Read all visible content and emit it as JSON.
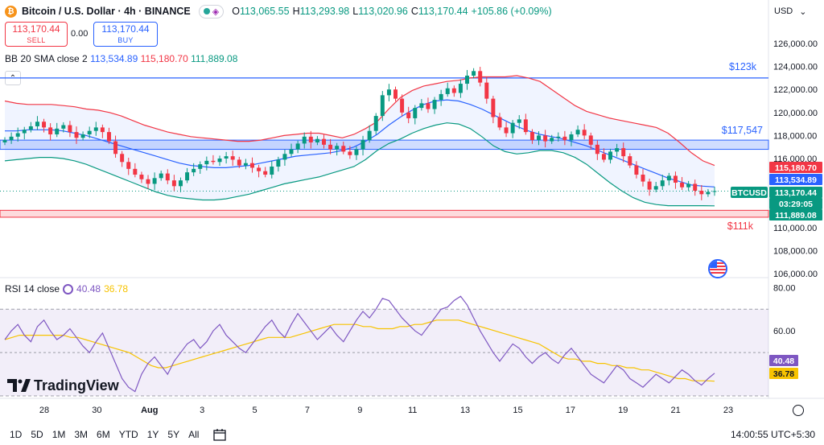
{
  "header": {
    "logo_letter": "₿",
    "title": "Bitcoin / U.S. Dollar · 4h · BINANCE",
    "ohlc": [
      {
        "label": "O",
        "value": "113,065.55"
      },
      {
        "label": "H",
        "value": "113,293.98"
      },
      {
        "label": "L",
        "value": "113,020.96"
      },
      {
        "label": "C",
        "value": "113,170.44"
      },
      {
        "label": "",
        "value": "+105.86 (+0.09%)"
      }
    ],
    "currency": "USD",
    "currency_chevron": "⌄"
  },
  "trade": {
    "sell_price": "113,170.44",
    "sell_label": "SELL",
    "spread": "0.00",
    "buy_price": "113,170.44",
    "buy_label": "BUY"
  },
  "bb_legend": {
    "label": "BB 20 SMA close 2",
    "middle": "113,534.89",
    "upper": "115,180.70",
    "lower": "111,889.08"
  },
  "collapse_glyph": "⌃",
  "rsi_legend": {
    "label": "RSI 14 close",
    "rsi": "40.48",
    "ma": "36.78"
  },
  "price_axis": [
    "126,000.00",
    "124,000.00",
    "122,000.00",
    "120,000.00",
    "118,000.00",
    "116,000.00",
    "110,000.00",
    "108,000.00",
    "106,000.00"
  ],
  "rsi_axis": [
    "80.00",
    "60.00"
  ],
  "axis_badges": [
    {
      "text": "115,180.70",
      "color": "#f23645"
    },
    {
      "text": "113,534.89",
      "color": "#2962ff"
    },
    {
      "text": "113,170.44",
      "color": "#089981"
    },
    {
      "text": "03:29:05",
      "color": "#089981"
    },
    {
      "text": "111,889.08",
      "color": "#089981"
    }
  ],
  "symbol_badge": "BTCUSD",
  "rsi_badges": [
    {
      "text": "40.48",
      "color": "#7e57c2"
    },
    {
      "text": "36.78",
      "color": "#f7c300"
    }
  ],
  "annotations": {
    "line_123k": "$123k",
    "zone_117k": "$117,547",
    "zone_111k": "$111k"
  },
  "time_axis": [
    "28",
    "30",
    "Aug",
    "3",
    "5",
    "7",
    "9",
    "11",
    "13",
    "15",
    "17",
    "19",
    "21",
    "23"
  ],
  "bottom": {
    "timeframes": [
      "1D",
      "5D",
      "1M",
      "3M",
      "6M",
      "YTD",
      "1Y",
      "5Y",
      "All"
    ],
    "clock": "14:00:55 UTC+5:30"
  },
  "brand": {
    "text": "TradingView"
  },
  "colors": {
    "up": "#089981",
    "down": "#f23645",
    "basis": "#2962ff",
    "rsi": "#7e57c2",
    "rsi_ma": "#f7c300"
  },
  "chart_data": {
    "type": "candlestick",
    "title": "Bitcoin / U.S. Dollar · 4h · BINANCE",
    "y_range": [
      106000,
      126000
    ],
    "x_labels": [
      "28",
      "30",
      "Aug",
      "3",
      "5",
      "7",
      "9",
      "11",
      "13",
      "15",
      "17",
      "19",
      "21",
      "23"
    ],
    "close_series": [
      117600,
      117900,
      118200,
      118500,
      118800,
      119200,
      118700,
      118100,
      118600,
      118900,
      118300,
      117800,
      118100,
      118400,
      118700,
      118300,
      117500,
      116400,
      115700,
      115100,
      114600,
      114200,
      113800,
      114300,
      114700,
      114100,
      113600,
      114100,
      114800,
      115100,
      115500,
      115800,
      115700,
      116000,
      116200,
      115900,
      115400,
      115600,
      115200,
      114900,
      114600,
      115300,
      115900,
      116400,
      116800,
      117300,
      117900,
      117400,
      117700,
      117200,
      116800,
      117100,
      116600,
      116300,
      116800,
      117600,
      118400,
      119700,
      121500,
      122000,
      121200,
      120000,
      119500,
      120400,
      120800,
      120300,
      121100,
      121600,
      122100,
      121700,
      122500,
      123200,
      123600,
      122600,
      121200,
      119600,
      118700,
      118200,
      119100,
      119400,
      118300,
      117600,
      118000,
      117500,
      117800,
      117900,
      117600,
      118100,
      118500,
      118000,
      117200,
      116400,
      115900,
      116600,
      116900,
      116200,
      115400,
      114600,
      114000,
      113300,
      113600,
      114100,
      114500,
      113900,
      113500,
      113800,
      113200,
      112900,
      113100,
      113170
    ],
    "bb_upper": [
      121000,
      120800,
      120700,
      120700,
      120700,
      120600,
      120500,
      120300,
      120200,
      120000,
      119700,
      119300,
      118900,
      118600,
      118300,
      118100,
      117900,
      117800,
      117700,
      117600,
      117500,
      117500,
      117600,
      117800,
      118000,
      118100,
      118200,
      118200,
      118000,
      117800,
      118100,
      118600,
      119200,
      120300,
      121300,
      121900,
      122300,
      122500,
      122700,
      122800,
      123000,
      123100,
      123100,
      123100,
      123200,
      123000,
      122700,
      122000,
      121300,
      120600,
      120100,
      119800,
      119500,
      119300,
      119100,
      118900,
      118700,
      118200,
      117400,
      116500,
      115800,
      115400
    ],
    "bb_basis": [
      118400,
      118400,
      118500,
      118500,
      118500,
      118400,
      118200,
      118000,
      117700,
      117400,
      117100,
      116800,
      116500,
      116200,
      115900,
      115600,
      115400,
      115300,
      115200,
      115200,
      115300,
      115400,
      115600,
      115800,
      116000,
      116200,
      116300,
      116400,
      116500,
      116700,
      117000,
      117500,
      118100,
      118900,
      119600,
      120200,
      120700,
      121000,
      121100,
      121000,
      120700,
      120300,
      119800,
      119300,
      118800,
      118400,
      118100,
      117900,
      117700,
      117400,
      117100,
      116700,
      116300,
      115900,
      115500,
      115100,
      114700,
      114300,
      114000,
      113700,
      113600,
      113530
    ],
    "bb_lower": [
      115800,
      115900,
      116000,
      116100,
      116100,
      116000,
      115800,
      115500,
      115100,
      114700,
      114300,
      113900,
      113500,
      113100,
      112800,
      112600,
      112500,
      112400,
      112400,
      112500,
      112700,
      112900,
      113200,
      113500,
      113800,
      114000,
      114200,
      114400,
      114700,
      115000,
      115300,
      115900,
      116700,
      117300,
      117700,
      118200,
      118600,
      118900,
      119100,
      119000,
      118600,
      117900,
      117100,
      116600,
      116400,
      116500,
      116700,
      116700,
      116500,
      116100,
      115500,
      114700,
      113900,
      113200,
      112600,
      112200,
      112000,
      111900,
      111900,
      111900,
      111900,
      111890
    ],
    "rsi": [
      56,
      60,
      63,
      58,
      55,
      62,
      65,
      60,
      56,
      58,
      61,
      57,
      53,
      50,
      55,
      59,
      52,
      45,
      38,
      34,
      32,
      40,
      45,
      48,
      44,
      40,
      46,
      50,
      54,
      56,
      52,
      55,
      60,
      63,
      58,
      55,
      52,
      50,
      54,
      58,
      62,
      65,
      60,
      57,
      63,
      68,
      64,
      60,
      56,
      59,
      62,
      58,
      55,
      60,
      65,
      69,
      66,
      70,
      75,
      74,
      70,
      66,
      63,
      60,
      58,
      62,
      66,
      70,
      71,
      74,
      76,
      72,
      66,
      60,
      55,
      50,
      46,
      50,
      54,
      52,
      48,
      45,
      48,
      50,
      47,
      45,
      49,
      52,
      48,
      44,
      40,
      38,
      36,
      40,
      44,
      42,
      38,
      36,
      34,
      37,
      40,
      38,
      36,
      39,
      42,
      40,
      37,
      35,
      38,
      40.48
    ],
    "rsi_ma": [
      56,
      57,
      58,
      58,
      58,
      58,
      58,
      58,
      58,
      57,
      57,
      56,
      55,
      54,
      53,
      52,
      51,
      50,
      48,
      46,
      44,
      43,
      43,
      44,
      45,
      46,
      47,
      48,
      49,
      50,
      51,
      52,
      53,
      54,
      55,
      56,
      57,
      57,
      57,
      57,
      58,
      59,
      60,
      61,
      62,
      63,
      63,
      63,
      63,
      62,
      62,
      61,
      61,
      61,
      62,
      62,
      63,
      63,
      64,
      65,
      65,
      65,
      65,
      64,
      63,
      62,
      61,
      60,
      59,
      58,
      57,
      56,
      55,
      54,
      52,
      50,
      48,
      47,
      47,
      46,
      46,
      45,
      45,
      44,
      44,
      43,
      43,
      42,
      42,
      41,
      40,
      39,
      38,
      38,
      37,
      37,
      37,
      36.78
    ],
    "rsi_range": [
      30,
      82
    ],
    "rsi_bands": [
      70,
      30
    ],
    "levels": {
      "line_123k": 123000,
      "zone_117k": [
        116800,
        117600
      ],
      "zone_111k": [
        110900,
        111500
      ]
    }
  }
}
